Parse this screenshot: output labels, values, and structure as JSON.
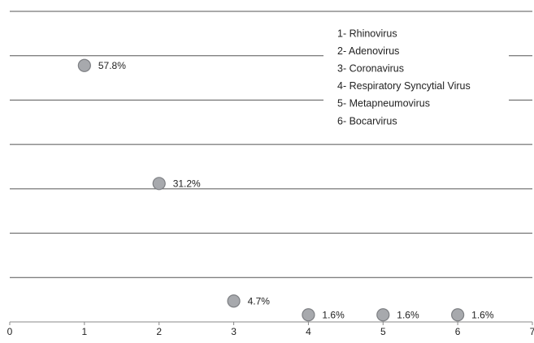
{
  "chart_data": {
    "type": "scatter",
    "x": [
      1,
      2,
      3,
      4,
      5,
      6
    ],
    "values": [
      57.8,
      31.2,
      4.7,
      1.6,
      1.6,
      1.6
    ],
    "value_labels": [
      "57.8%",
      "31.2%",
      "4.7%",
      "1.6%",
      "1.6%",
      "1.6%"
    ],
    "color": "#a7a9ad",
    "xlim": [
      0,
      7
    ],
    "xticks": [
      0,
      1,
      2,
      3,
      4,
      5,
      6,
      7
    ],
    "ylim": [
      0,
      70
    ],
    "yticks": [
      0,
      10,
      20,
      30,
      40,
      50,
      60,
      70
    ],
    "grid": true,
    "legend": [
      "1- Rhinovirus",
      "2- Adenovirus",
      "3- Coronavirus",
      "4- Respiratory Syncytial Virus",
      "5- Metapneumovirus",
      "6- Bocarvirus"
    ]
  }
}
